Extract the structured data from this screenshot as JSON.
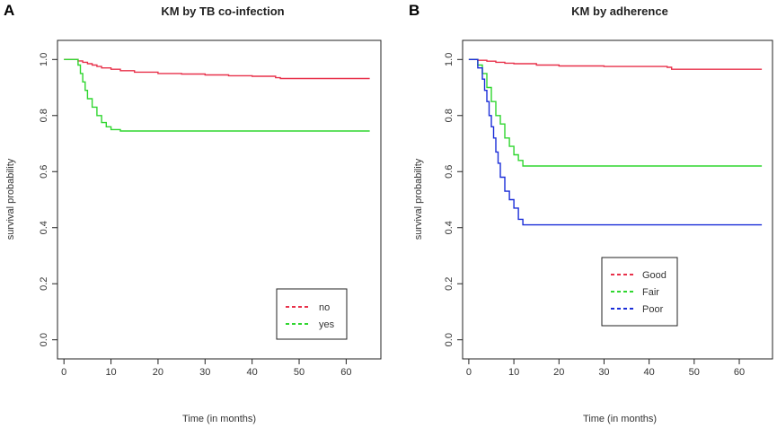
{
  "chart_data": [
    {
      "panel": "A",
      "type": "line",
      "step": true,
      "title": "KM by TB co-infection",
      "xlabel": "Time (in months)",
      "ylabel": "survival probability",
      "xlim": [
        0,
        66
      ],
      "ylim": [
        0,
        1
      ],
      "xticks": [
        0,
        10,
        20,
        30,
        40,
        50,
        60
      ],
      "yticks": [
        0.0,
        0.2,
        0.4,
        0.6,
        0.8,
        1.0
      ],
      "ytick_labels": [
        "0.0",
        "0.2",
        "0.4",
        "0.6",
        "0.8",
        "1.0"
      ],
      "legend": {
        "position": "bottom-right"
      },
      "series": [
        {
          "name": "no",
          "color": "#e8314a",
          "x": [
            0,
            3,
            4,
            5,
            6,
            7,
            8,
            10,
            12,
            15,
            20,
            25,
            30,
            35,
            40,
            45,
            46,
            65
          ],
          "y": [
            1.0,
            0.995,
            0.99,
            0.985,
            0.98,
            0.975,
            0.97,
            0.965,
            0.96,
            0.955,
            0.95,
            0.948,
            0.945,
            0.942,
            0.94,
            0.935,
            0.932,
            0.932
          ]
        },
        {
          "name": "yes",
          "color": "#2fd62f",
          "x": [
            0,
            3,
            3.5,
            4,
            4.5,
            5,
            6,
            7,
            8,
            9,
            10,
            12,
            65
          ],
          "y": [
            1.0,
            0.98,
            0.95,
            0.92,
            0.89,
            0.86,
            0.83,
            0.8,
            0.775,
            0.76,
            0.75,
            0.745,
            0.745
          ]
        }
      ]
    },
    {
      "panel": "B",
      "type": "line",
      "step": true,
      "title": "KM by adherence",
      "xlabel": "Time (in months)",
      "ylabel": "survival probability",
      "xlim": [
        0,
        66
      ],
      "ylim": [
        0,
        1
      ],
      "xticks": [
        0,
        10,
        20,
        30,
        40,
        50,
        60
      ],
      "yticks": [
        0.0,
        0.2,
        0.4,
        0.6,
        0.8,
        1.0
      ],
      "ytick_labels": [
        "0.0",
        "0.2",
        "0.4",
        "0.6",
        "0.8",
        "1.0"
      ],
      "legend": {
        "position": "bottom-center"
      },
      "series": [
        {
          "name": "Good",
          "color": "#e8314a",
          "x": [
            0,
            2,
            4,
            6,
            8,
            10,
            15,
            20,
            30,
            44,
            45,
            65
          ],
          "y": [
            1.0,
            0.997,
            0.994,
            0.99,
            0.987,
            0.985,
            0.98,
            0.977,
            0.975,
            0.972,
            0.965,
            0.965
          ]
        },
        {
          "name": "Fair",
          "color": "#2fd62f",
          "x": [
            0,
            2,
            3,
            4,
            5,
            6,
            7,
            8,
            9,
            10,
            11,
            12,
            65
          ],
          "y": [
            1.0,
            0.98,
            0.95,
            0.9,
            0.85,
            0.8,
            0.77,
            0.72,
            0.69,
            0.66,
            0.64,
            0.62,
            0.62
          ]
        },
        {
          "name": "Poor",
          "color": "#1a2dd8",
          "x": [
            0,
            2,
            3,
            3.5,
            4,
            4.5,
            5,
            5.5,
            6,
            6.5,
            7,
            8,
            9,
            10,
            11,
            12,
            65
          ],
          "y": [
            1.0,
            0.97,
            0.93,
            0.89,
            0.85,
            0.8,
            0.76,
            0.72,
            0.67,
            0.63,
            0.58,
            0.53,
            0.5,
            0.47,
            0.43,
            0.41,
            0.41
          ]
        }
      ]
    }
  ]
}
